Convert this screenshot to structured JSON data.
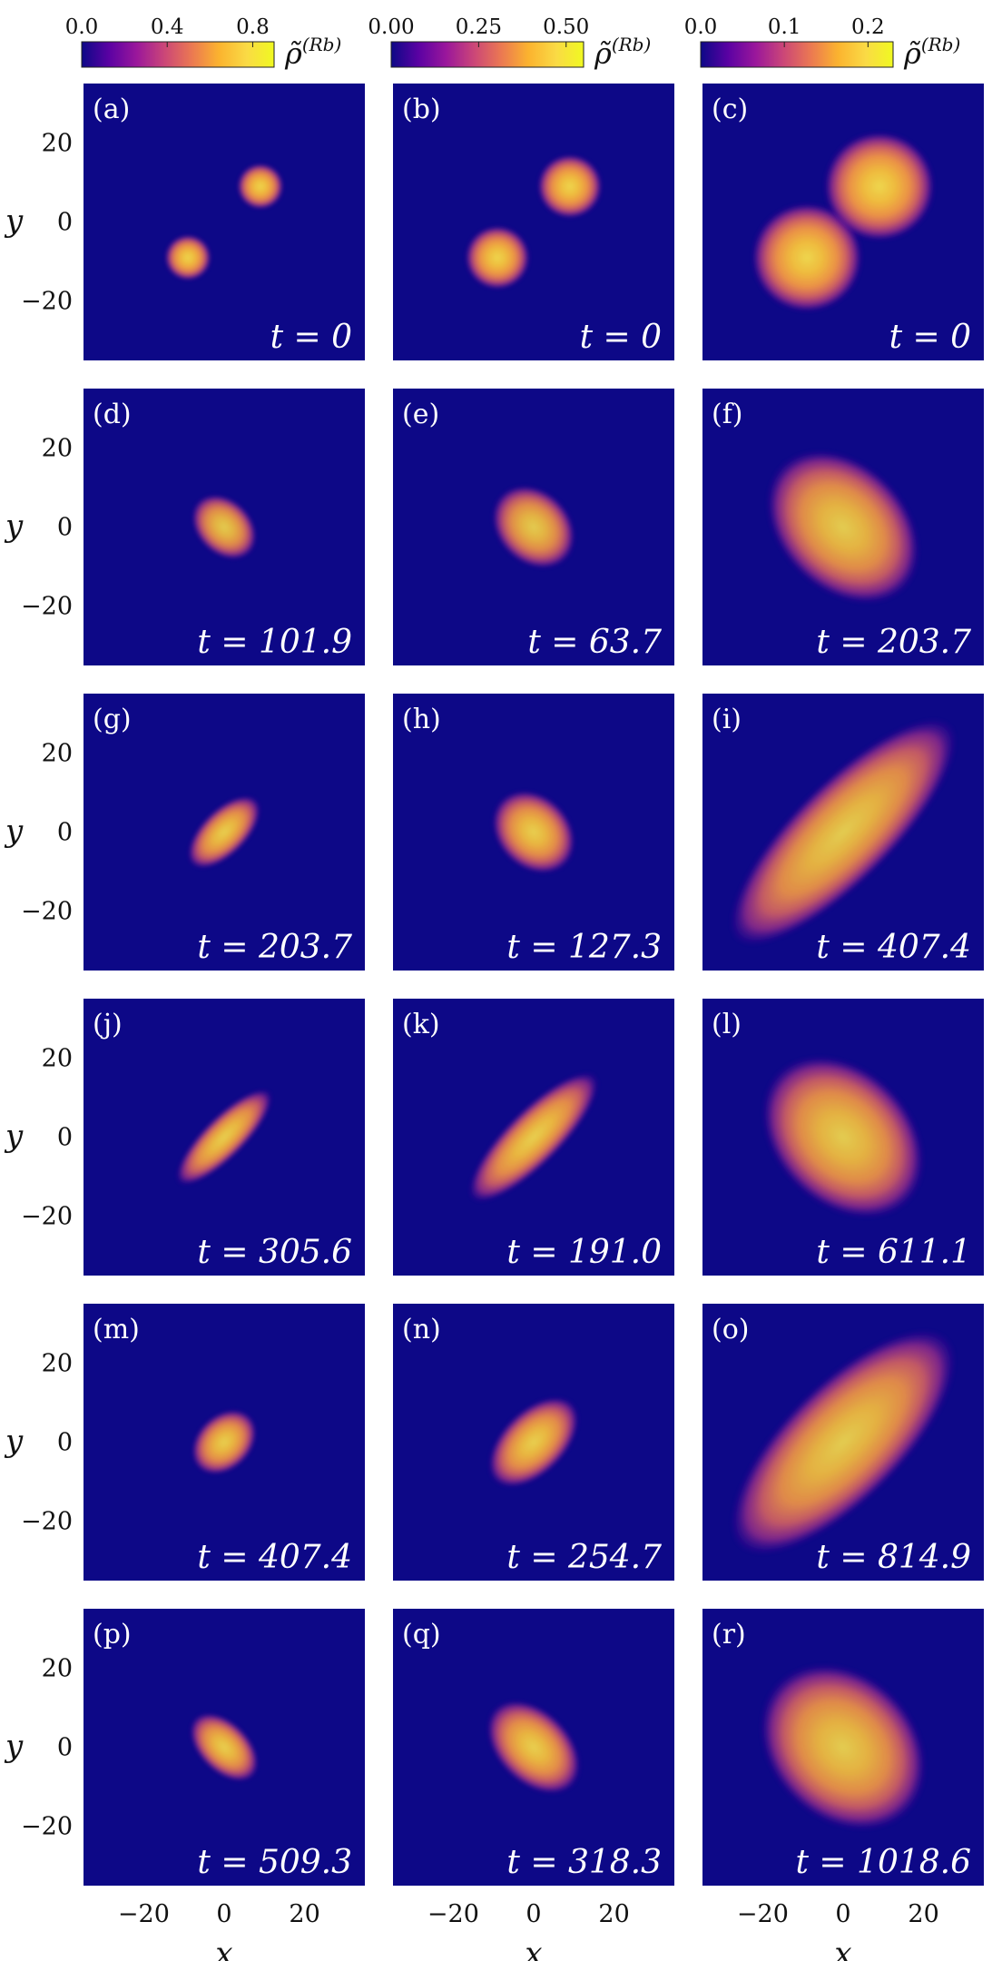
{
  "chart_data": {
    "type": "heatmap",
    "grid": {
      "rows": 6,
      "cols": 3
    },
    "xlabel": "x",
    "ylabel": "y",
    "xlim": [
      -35,
      35
    ],
    "ylim": [
      -35,
      35
    ],
    "xticks": [
      -20,
      0,
      20
    ],
    "yticks": [
      20,
      0,
      -20
    ],
    "xtick_labels": [
      "−20",
      "0",
      "20"
    ],
    "ytick_labels": [
      "20",
      "0",
      "−20"
    ],
    "background_color": "#0d0887",
    "colormap": "plasma",
    "colormap_stops": [
      "#0d0887",
      "#5b02a3",
      "#9a179b",
      "#cb4678",
      "#eb7852",
      "#fbb32f",
      "#fada45",
      "#f0f921"
    ],
    "colorbars": [
      {
        "column": 0,
        "label": "ρ̃",
        "label_sup": "(Rb)",
        "range": [
          0,
          0.9
        ],
        "tick_values": [
          0.0,
          0.4,
          0.8
        ],
        "tick_labels": [
          "0.0",
          "0.4",
          "0.8"
        ]
      },
      {
        "column": 1,
        "label": "ρ̃",
        "label_sup": "(Rb)",
        "range": [
          0,
          0.55
        ],
        "tick_values": [
          0.0,
          0.25,
          0.5
        ],
        "tick_labels": [
          "0.00",
          "0.25",
          "0.50"
        ]
      },
      {
        "column": 2,
        "label": "ρ̃",
        "label_sup": "(Rb)",
        "range": [
          0,
          0.23
        ],
        "tick_values": [
          0.0,
          0.1,
          0.2
        ],
        "tick_labels": [
          "0.0",
          "0.1",
          "0.2"
        ]
      }
    ],
    "panels": [
      {
        "label": "(a)",
        "time": "t = 0",
        "blobs": [
          {
            "x": -9,
            "y": -9,
            "rx": 5,
            "ry": 5,
            "rot": 0,
            "level": 0.95
          },
          {
            "x": 9,
            "y": 9,
            "rx": 5,
            "ry": 5,
            "rot": 0,
            "level": 0.95
          }
        ]
      },
      {
        "label": "(b)",
        "time": "t = 0",
        "blobs": [
          {
            "x": -9,
            "y": -9,
            "rx": 7,
            "ry": 7,
            "rot": 0,
            "level": 0.95
          },
          {
            "x": 9,
            "y": 9,
            "rx": 7,
            "ry": 7,
            "rot": 0,
            "level": 0.95
          }
        ]
      },
      {
        "label": "(c)",
        "time": "t = 0",
        "blobs": [
          {
            "x": -9,
            "y": -9,
            "rx": 12,
            "ry": 12,
            "rot": 0,
            "level": 0.95
          },
          {
            "x": 9,
            "y": 9,
            "rx": 12,
            "ry": 12,
            "rot": 0,
            "level": 0.95
          }
        ]
      },
      {
        "label": "(d)",
        "time": "t = 101.9",
        "blobs": [
          {
            "x": 0,
            "y": 0,
            "rx": 8,
            "ry": 6,
            "rot": -45,
            "level": 0.9
          }
        ]
      },
      {
        "label": "(e)",
        "time": "t = 63.7",
        "blobs": [
          {
            "x": 0,
            "y": 0,
            "rx": 10,
            "ry": 8,
            "rot": -45,
            "level": 0.9
          }
        ]
      },
      {
        "label": "(f)",
        "time": "t = 203.7",
        "blobs": [
          {
            "x": 0,
            "y": 0,
            "rx": 19,
            "ry": 14,
            "rot": -45,
            "level": 0.9
          }
        ]
      },
      {
        "label": "(g)",
        "time": "t = 203.7",
        "blobs": [
          {
            "x": 0,
            "y": 0,
            "rx": 10,
            "ry": 5,
            "rot": 45,
            "level": 0.92
          }
        ]
      },
      {
        "label": "(h)",
        "time": "t = 127.3",
        "blobs": [
          {
            "x": 0,
            "y": 0,
            "rx": 10,
            "ry": 8,
            "rot": -45,
            "level": 0.92
          }
        ]
      },
      {
        "label": "(i)",
        "time": "t = 407.4",
        "blobs": [
          {
            "x": 0,
            "y": 0,
            "rx": 33,
            "ry": 11,
            "rot": 45,
            "level": 0.9
          }
        ]
      },
      {
        "label": "(j)",
        "time": "t = 305.6",
        "blobs": [
          {
            "x": 0,
            "y": 0,
            "rx": 14,
            "ry": 4.5,
            "rot": 45,
            "level": 0.92
          }
        ]
      },
      {
        "label": "(k)",
        "time": "t = 191.0",
        "blobs": [
          {
            "x": 0,
            "y": 0,
            "rx": 19,
            "ry": 6,
            "rot": 45,
            "level": 0.92
          }
        ]
      },
      {
        "label": "(l)",
        "time": "t = 611.1",
        "blobs": [
          {
            "x": 0,
            "y": 0,
            "rx": 20,
            "ry": 15,
            "rot": -45,
            "level": 0.9
          }
        ]
      },
      {
        "label": "(m)",
        "time": "t = 407.4",
        "blobs": [
          {
            "x": 0,
            "y": 0,
            "rx": 8,
            "ry": 6,
            "rot": 45,
            "level": 0.92
          }
        ]
      },
      {
        "label": "(n)",
        "time": "t = 254.7",
        "blobs": [
          {
            "x": 0,
            "y": 0,
            "rx": 12,
            "ry": 7,
            "rot": 45,
            "level": 0.92
          }
        ]
      },
      {
        "label": "(o)",
        "time": "t = 814.9",
        "blobs": [
          {
            "x": 0,
            "y": 0,
            "rx": 32,
            "ry": 13,
            "rot": 45,
            "level": 0.9
          }
        ]
      },
      {
        "label": "(p)",
        "time": "t = 509.3",
        "blobs": [
          {
            "x": 0,
            "y": 0,
            "rx": 9,
            "ry": 5.5,
            "rot": -45,
            "level": 0.92
          }
        ]
      },
      {
        "label": "(q)",
        "time": "t = 318.3",
        "blobs": [
          {
            "x": 0,
            "y": 0,
            "rx": 12,
            "ry": 8,
            "rot": -45,
            "level": 0.92
          }
        ]
      },
      {
        "label": "(r)",
        "time": "t = 1018.6",
        "blobs": [
          {
            "x": 0,
            "y": 0,
            "rx": 20,
            "ry": 16,
            "rot": -45,
            "level": 0.9
          }
        ]
      }
    ]
  }
}
